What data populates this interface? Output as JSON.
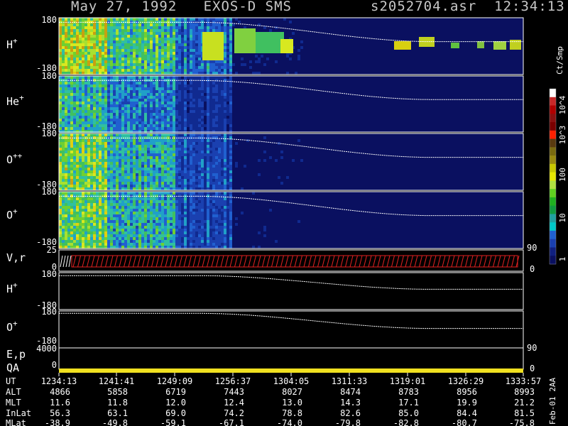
{
  "header": {
    "title": "May 27, 1992   EXOS-D SMS",
    "file_info": "s2052704.asr  12:34:13"
  },
  "side_label": "Feb-01 2AA",
  "colorbar": {
    "unit": "Ct/Smp",
    "ticks": [
      "10^4",
      "10^3",
      "100",
      "10",
      "1"
    ],
    "colors": [
      "#ffffff",
      "#c82828",
      "#b00000",
      "#8b1010",
      "#7a0000",
      "#ff2000",
      "#5a3a10",
      "#7a6a10",
      "#9a8a10",
      "#c8c800",
      "#e6e600",
      "#b0e040",
      "#60d020",
      "#20b020",
      "#109a40",
      "#20a0a0",
      "#00c8c8",
      "#2060d0",
      "#1a40b0",
      "#102080",
      "#0a1060"
    ]
  },
  "panels": {
    "h_plus": {
      "label": "H",
      "sup": "+",
      "ytop": "180",
      "ybot": "-180"
    },
    "he_plus": {
      "label": "He",
      "sup": "+",
      "ytop": "180",
      "ybot": "-180"
    },
    "o_pp": {
      "label": "O",
      "sup": "++",
      "ytop": "180",
      "ybot": "-180"
    },
    "o_plus": {
      "label": "O",
      "sup": "+",
      "ytop": "180",
      "ybot": "-180",
      "right_tick": "90"
    },
    "vr": {
      "label": "V,r",
      "ytop": "25",
      "ybot": "0",
      "right_tick": "0"
    },
    "h_plus_2": {
      "label": "H",
      "sup": "+",
      "ytop": "180",
      "ybot": "-180"
    },
    "o_plus_2": {
      "label": "O",
      "sup": "+",
      "ytop": "180",
      "ybot": "-180"
    },
    "ep": {
      "label": "E,p",
      "ytop": "4000",
      "right_tick": "90"
    },
    "qa": {
      "label": "QA",
      "ytop": "0",
      "right_tick": "0"
    }
  },
  "ephemeris": {
    "row_labels": [
      "UT",
      "ALT",
      "MLT",
      "InLat",
      "MLat"
    ],
    "columns": [
      {
        "UT": "1234:13",
        "ALT": "4866",
        "MLT": "11.6",
        "InLat": "56.3",
        "MLat": "-38.9"
      },
      {
        "UT": "1241:41",
        "ALT": "5858",
        "MLT": "11.8",
        "InLat": "63.1",
        "MLat": "-49.8"
      },
      {
        "UT": "1249:09",
        "ALT": "6719",
        "MLT": "12.0",
        "InLat": "69.0",
        "MLat": "-59.1"
      },
      {
        "UT": "1256:37",
        "ALT": "7443",
        "MLT": "12.4",
        "InLat": "74.2",
        "MLat": "-67.1"
      },
      {
        "UT": "1304:05",
        "ALT": "8027",
        "MLT": "13.0",
        "InLat": "78.8",
        "MLat": "-74.0"
      },
      {
        "UT": "1311:33",
        "ALT": "8474",
        "MLT": "14.3",
        "InLat": "82.6",
        "MLat": "-79.8"
      },
      {
        "UT": "1319:01",
        "ALT": "8783",
        "MLT": "17.1",
        "InLat": "85.0",
        "MLat": "-82.8"
      },
      {
        "UT": "1326:29",
        "ALT": "8956",
        "MLT": "19.9",
        "InLat": "84.4",
        "MLat": "-80.7"
      },
      {
        "UT": "1333:57",
        "ALT": "8993",
        "MLT": "21.2",
        "InLat": "81.5",
        "MLat": "-75.8"
      }
    ]
  },
  "chart_data": {
    "type": "heatmap",
    "title": "May 27, 1992   EXOS-D SMS",
    "x_ticks": [
      "1234:13",
      "1241:41",
      "1249:09",
      "1256:37",
      "1304:05",
      "1311:33",
      "1319:01",
      "1326:29",
      "1333:57"
    ],
    "panels": [
      "H+",
      "He+",
      "O++",
      "O+",
      "V,r",
      "H+",
      "O+",
      "E,p",
      "QA"
    ],
    "colorbar_unit": "Ct/Smp",
    "colorbar_ticks": [
      "1",
      "10",
      "100",
      "10^3",
      "10^4"
    ],
    "colorbar_scale": "log"
  }
}
